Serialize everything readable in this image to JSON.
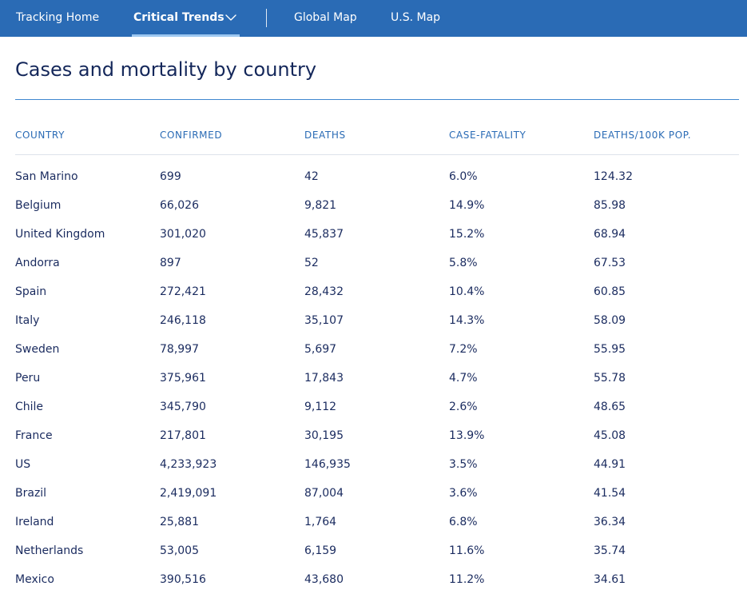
{
  "nav": {
    "items": [
      {
        "label": "Tracking Home"
      },
      {
        "label": "Critical Trends"
      },
      {
        "label": "Global Map"
      },
      {
        "label": "U.S. Map"
      }
    ]
  },
  "page": {
    "title": "Cases and mortality by country"
  },
  "table": {
    "columns": [
      "COUNTRY",
      "CONFIRMED",
      "DEATHS",
      "CASE-FATALITY",
      "DEATHS/100K POP."
    ],
    "rows": [
      [
        "San Marino",
        "699",
        "42",
        "6.0%",
        "124.32"
      ],
      [
        "Belgium",
        "66,026",
        "9,821",
        "14.9%",
        "85.98"
      ],
      [
        "United Kingdom",
        "301,020",
        "45,837",
        "15.2%",
        "68.94"
      ],
      [
        "Andorra",
        "897",
        "52",
        "5.8%",
        "67.53"
      ],
      [
        "Spain",
        "272,421",
        "28,432",
        "10.4%",
        "60.85"
      ],
      [
        "Italy",
        "246,118",
        "35,107",
        "14.3%",
        "58.09"
      ],
      [
        "Sweden",
        "78,997",
        "5,697",
        "7.2%",
        "55.95"
      ],
      [
        "Peru",
        "375,961",
        "17,843",
        "4.7%",
        "55.78"
      ],
      [
        "Chile",
        "345,790",
        "9,112",
        "2.6%",
        "48.65"
      ],
      [
        "France",
        "217,801",
        "30,195",
        "13.9%",
        "45.08"
      ],
      [
        "US",
        "4,233,923",
        "146,935",
        "3.5%",
        "44.91"
      ],
      [
        "Brazil",
        "2,419,091",
        "87,004",
        "3.6%",
        "41.54"
      ],
      [
        "Ireland",
        "25,881",
        "1,764",
        "6.8%",
        "36.34"
      ],
      [
        "Netherlands",
        "53,005",
        "6,159",
        "11.6%",
        "35.74"
      ],
      [
        "Mexico",
        "390,516",
        "43,680",
        "11.2%",
        "34.61"
      ]
    ]
  },
  "colors": {
    "nav_bg": "#2a6bb5",
    "active_underline": "#9cc7f1",
    "title_text": "#14275a",
    "header_text": "#2a6bb5",
    "title_rule": "#3f87d0"
  },
  "icons": {
    "dropdown": "chevron-down-icon"
  }
}
